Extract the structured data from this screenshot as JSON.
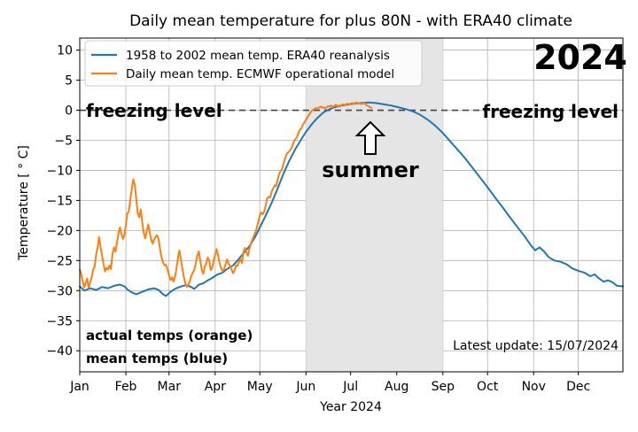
{
  "chart_data": {
    "type": "line",
    "title": "Daily mean temperature for plus 80N - with ERA40 climate",
    "xlabel": "Year 2024",
    "ylabel": "Temperature [ ° C]",
    "ylim": [
      -43.5,
      12
    ],
    "xlim": [
      1,
      366
    ],
    "grid": true,
    "legend": "top-left",
    "year_badge": "2024",
    "update_text": "Latest update: 15/07/2024",
    "yticks": [
      10,
      5,
      0,
      -5,
      -10,
      -15,
      -20,
      -25,
      -30,
      -35,
      -40
    ],
    "month_ticks": [
      {
        "label": "Jan",
        "day": 1
      },
      {
        "label": "Feb",
        "day": 32
      },
      {
        "label": "Mar",
        "day": 61
      },
      {
        "label": "Apr",
        "day": 92
      },
      {
        "label": "May",
        "day": 122
      },
      {
        "label": "Jun",
        "day": 153
      },
      {
        "label": "Jul",
        "day": 183
      },
      {
        "label": "Aug",
        "day": 214
      },
      {
        "label": "Sep",
        "day": 245
      },
      {
        "label": "Oct",
        "day": 275
      },
      {
        "label": "Nov",
        "day": 306
      },
      {
        "label": "Dec",
        "day": 336
      }
    ],
    "summer_shade": {
      "from_day": 153,
      "to_day": 245
    },
    "freezing_level": {
      "y": 0,
      "label_left": "freezing level",
      "label_right": "freezing level"
    },
    "annotations": {
      "summer": "summer",
      "note_line1": "actual temps (orange)",
      "note_line2": "mean temps (blue)"
    },
    "colors": {
      "climate": "#1f77b4",
      "operational": "#ff7f0e",
      "shade": "#e5e5e5"
    },
    "series": [
      {
        "name": "1958 to 2002 mean temp. ERA40 reanalysis",
        "color": "#1f77b4",
        "points": [
          [
            1,
            -29.3
          ],
          [
            4,
            -30.0
          ],
          [
            8,
            -29.6
          ],
          [
            12,
            -29.9
          ],
          [
            16,
            -29.4
          ],
          [
            20,
            -29.6
          ],
          [
            24,
            -29.2
          ],
          [
            28,
            -29.0
          ],
          [
            31,
            -29.3
          ],
          [
            33,
            -29.8
          ],
          [
            36,
            -30.3
          ],
          [
            39,
            -30.6
          ],
          [
            43,
            -30.2
          ],
          [
            47,
            -29.8
          ],
          [
            51,
            -29.6
          ],
          [
            54,
            -29.9
          ],
          [
            57,
            -30.6
          ],
          [
            59,
            -30.9
          ],
          [
            62,
            -30.2
          ],
          [
            65,
            -29.7
          ],
          [
            68,
            -29.4
          ],
          [
            72,
            -29.1
          ],
          [
            75,
            -29.3
          ],
          [
            78,
            -29.7
          ],
          [
            81,
            -29.0
          ],
          [
            84,
            -28.8
          ],
          [
            87,
            -28.3
          ],
          [
            90,
            -27.9
          ],
          [
            93,
            -27.4
          ],
          [
            97,
            -27.0
          ],
          [
            100,
            -26.4
          ],
          [
            104,
            -25.8
          ],
          [
            107,
            -25.0
          ],
          [
            111,
            -23.8
          ],
          [
            115,
            -22.6
          ],
          [
            119,
            -21.0
          ],
          [
            122,
            -19.5
          ],
          [
            126,
            -17.5
          ],
          [
            130,
            -15.4
          ],
          [
            134,
            -13.0
          ],
          [
            138,
            -10.5
          ],
          [
            142,
            -8.3
          ],
          [
            146,
            -6.4
          ],
          [
            150,
            -4.8
          ],
          [
            153,
            -3.6
          ],
          [
            157,
            -2.3
          ],
          [
            161,
            -1.2
          ],
          [
            165,
            -0.3
          ],
          [
            170,
            0.3
          ],
          [
            175,
            0.7
          ],
          [
            180,
            0.9
          ],
          [
            185,
            1.1
          ],
          [
            190,
            1.2
          ],
          [
            195,
            1.3
          ],
          [
            200,
            1.2
          ],
          [
            205,
            1.0
          ],
          [
            210,
            0.8
          ],
          [
            215,
            0.5
          ],
          [
            220,
            0.2
          ],
          [
            225,
            -0.2
          ],
          [
            230,
            -0.8
          ],
          [
            235,
            -1.6
          ],
          [
            240,
            -2.6
          ],
          [
            245,
            -3.8
          ],
          [
            250,
            -5.2
          ],
          [
            255,
            -6.6
          ],
          [
            260,
            -8.0
          ],
          [
            265,
            -9.6
          ],
          [
            270,
            -11.2
          ],
          [
            275,
            -12.8
          ],
          [
            280,
            -14.5
          ],
          [
            285,
            -16.1
          ],
          [
            290,
            -17.8
          ],
          [
            295,
            -19.4
          ],
          [
            300,
            -21.0
          ],
          [
            304,
            -22.4
          ],
          [
            307,
            -23.3
          ],
          [
            310,
            -22.8
          ],
          [
            313,
            -23.5
          ],
          [
            316,
            -24.4
          ],
          [
            320,
            -25.0
          ],
          [
            324,
            -25.2
          ],
          [
            328,
            -25.6
          ],
          [
            332,
            -26.3
          ],
          [
            336,
            -26.7
          ],
          [
            340,
            -27.0
          ],
          [
            344,
            -27.6
          ],
          [
            347,
            -27.3
          ],
          [
            350,
            -28.0
          ],
          [
            353,
            -28.5
          ],
          [
            356,
            -28.3
          ],
          [
            359,
            -28.6
          ],
          [
            362,
            -29.2
          ],
          [
            366,
            -29.3
          ]
        ]
      },
      {
        "name": "Daily mean temp. ECMWF operational model",
        "color": "#ff7f0e",
        "points": [
          [
            1,
            -26.5
          ],
          [
            2,
            -27.2
          ],
          [
            3,
            -28.5
          ],
          [
            4,
            -29.5
          ],
          [
            5,
            -28.7
          ],
          [
            6,
            -28.0
          ],
          [
            7,
            -29.5
          ],
          [
            8,
            -28.6
          ],
          [
            9,
            -27.8
          ],
          [
            10,
            -26.5
          ],
          [
            11,
            -26.0
          ],
          [
            12,
            -24.0
          ],
          [
            13,
            -22.8
          ],
          [
            14,
            -21.1
          ],
          [
            15,
            -22.8
          ],
          [
            16,
            -24.2
          ],
          [
            17,
            -25.6
          ],
          [
            18,
            -26.8
          ],
          [
            19,
            -26.2
          ],
          [
            20,
            -26.5
          ],
          [
            21,
            -25.8
          ],
          [
            22,
            -26.4
          ],
          [
            23,
            -24.0
          ],
          [
            24,
            -22.8
          ],
          [
            25,
            -23.5
          ],
          [
            26,
            -22.0
          ],
          [
            27,
            -20.5
          ],
          [
            28,
            -19.5
          ],
          [
            29,
            -20.5
          ],
          [
            30,
            -21.4
          ],
          [
            31,
            -20.8
          ],
          [
            32,
            -19.0
          ],
          [
            33,
            -17.2
          ],
          [
            34,
            -16.8
          ],
          [
            35,
            -14.8
          ],
          [
            36,
            -13.0
          ],
          [
            37,
            -11.5
          ],
          [
            38,
            -12.4
          ],
          [
            39,
            -14.8
          ],
          [
            40,
            -17.2
          ],
          [
            41,
            -17.8
          ],
          [
            42,
            -16.5
          ],
          [
            43,
            -18.6
          ],
          [
            44,
            -20.4
          ],
          [
            45,
            -21.3
          ],
          [
            46,
            -20.1
          ],
          [
            47,
            -19.0
          ],
          [
            48,
            -20.2
          ],
          [
            49,
            -21.5
          ],
          [
            50,
            -22.2
          ],
          [
            51,
            -21.5
          ],
          [
            52,
            -21.0
          ],
          [
            53,
            -20.8
          ],
          [
            54,
            -21.5
          ],
          [
            55,
            -23.2
          ],
          [
            56,
            -24.5
          ],
          [
            57,
            -25.3
          ],
          [
            58,
            -25.8
          ],
          [
            59,
            -25.7
          ],
          [
            60,
            -26.5
          ],
          [
            61,
            -27.5
          ],
          [
            62,
            -28.2
          ],
          [
            63,
            -27.8
          ],
          [
            64,
            -28.5
          ],
          [
            65,
            -27.7
          ],
          [
            66,
            -26.3
          ],
          [
            67,
            -24.6
          ],
          [
            68,
            -23.3
          ],
          [
            69,
            -24.8
          ],
          [
            70,
            -26.5
          ],
          [
            71,
            -27.8
          ],
          [
            72,
            -28.8
          ],
          [
            73,
            -29.4
          ],
          [
            74,
            -29.0
          ],
          [
            75,
            -28.4
          ],
          [
            76,
            -27.5
          ],
          [
            77,
            -27.0
          ],
          [
            78,
            -26.5
          ],
          [
            79,
            -25.4
          ],
          [
            80,
            -24.1
          ],
          [
            81,
            -23.5
          ],
          [
            82,
            -25.0
          ],
          [
            83,
            -26.5
          ],
          [
            84,
            -27.2
          ],
          [
            85,
            -26.0
          ],
          [
            86,
            -25.5
          ],
          [
            87,
            -24.5
          ],
          [
            88,
            -25.0
          ],
          [
            89,
            -26.6
          ],
          [
            90,
            -26.2
          ],
          [
            91,
            -25.0
          ],
          [
            92,
            -24.0
          ],
          [
            93,
            -23.1
          ],
          [
            94,
            -24.2
          ],
          [
            95,
            -25.5
          ],
          [
            96,
            -26.2
          ],
          [
            97,
            -26.8
          ],
          [
            98,
            -26.4
          ],
          [
            99,
            -25.6
          ],
          [
            100,
            -24.8
          ],
          [
            101,
            -25.4
          ],
          [
            102,
            -26.0
          ],
          [
            103,
            -26.5
          ],
          [
            104,
            -27.1
          ],
          [
            105,
            -26.6
          ],
          [
            106,
            -25.8
          ],
          [
            107,
            -25.9
          ],
          [
            108,
            -25.2
          ],
          [
            109,
            -24.8
          ],
          [
            110,
            -25.4
          ],
          [
            111,
            -23.6
          ],
          [
            112,
            -22.9
          ],
          [
            113,
            -23.6
          ],
          [
            114,
            -24.2
          ],
          [
            115,
            -23.0
          ],
          [
            116,
            -22.2
          ],
          [
            117,
            -21.5
          ],
          [
            118,
            -20.9
          ],
          [
            119,
            -20.3
          ],
          [
            120,
            -19.5
          ],
          [
            121,
            -18.5
          ],
          [
            122,
            -17.5
          ],
          [
            123,
            -17.0
          ],
          [
            124,
            -17.3
          ],
          [
            125,
            -16.8
          ],
          [
            126,
            -15.8
          ],
          [
            127,
            -14.6
          ],
          [
            128,
            -14.4
          ],
          [
            129,
            -14.5
          ],
          [
            130,
            -13.5
          ],
          [
            131,
            -13.0
          ],
          [
            132,
            -12.5
          ],
          [
            133,
            -12.6
          ],
          [
            134,
            -11.5
          ],
          [
            135,
            -10.6
          ],
          [
            136,
            -10.1
          ],
          [
            137,
            -9.8
          ],
          [
            138,
            -8.8
          ],
          [
            139,
            -8.0
          ],
          [
            140,
            -7.3
          ],
          [
            141,
            -7.0
          ],
          [
            142,
            -6.8
          ],
          [
            143,
            -6.4
          ],
          [
            144,
            -5.9
          ],
          [
            145,
            -5.2
          ],
          [
            146,
            -4.8
          ],
          [
            147,
            -4.5
          ],
          [
            148,
            -3.7
          ],
          [
            149,
            -3.2
          ],
          [
            150,
            -3.0
          ],
          [
            151,
            -2.4
          ],
          [
            152,
            -2.0
          ],
          [
            153,
            -1.6
          ],
          [
            154,
            -1.2
          ],
          [
            155,
            -0.8
          ],
          [
            156,
            -0.4
          ],
          [
            157,
            -0.1
          ],
          [
            158,
            0.1
          ],
          [
            159,
            0.3
          ],
          [
            160,
            0.4
          ],
          [
            161,
            0.2
          ],
          [
            162,
            0.5
          ],
          [
            163,
            0.6
          ],
          [
            164,
            0.4
          ],
          [
            165,
            0.5
          ],
          [
            166,
            0.3
          ],
          [
            167,
            0.5
          ],
          [
            168,
            0.7
          ],
          [
            169,
            0.6
          ],
          [
            170,
            0.8
          ],
          [
            171,
            0.5
          ],
          [
            172,
            0.7
          ],
          [
            173,
            0.9
          ],
          [
            174,
            0.7
          ],
          [
            175,
            0.8
          ],
          [
            176,
            0.6
          ],
          [
            177,
            0.9
          ],
          [
            178,
            1.0
          ],
          [
            179,
            0.8
          ],
          [
            180,
            1.0
          ],
          [
            181,
            1.1
          ],
          [
            182,
            0.9
          ],
          [
            183,
            1.1
          ],
          [
            184,
            1.2
          ],
          [
            185,
            1.0
          ],
          [
            186,
            1.2
          ],
          [
            187,
            1.3
          ],
          [
            188,
            1.1
          ],
          [
            189,
            1.2
          ],
          [
            190,
            1.0
          ],
          [
            191,
            1.1
          ],
          [
            192,
            1.2
          ],
          [
            193,
            1.0
          ],
          [
            194,
            0.8
          ],
          [
            195,
            0.7
          ],
          [
            196,
            0.5
          ],
          [
            197,
            0.4
          ]
        ]
      }
    ]
  }
}
